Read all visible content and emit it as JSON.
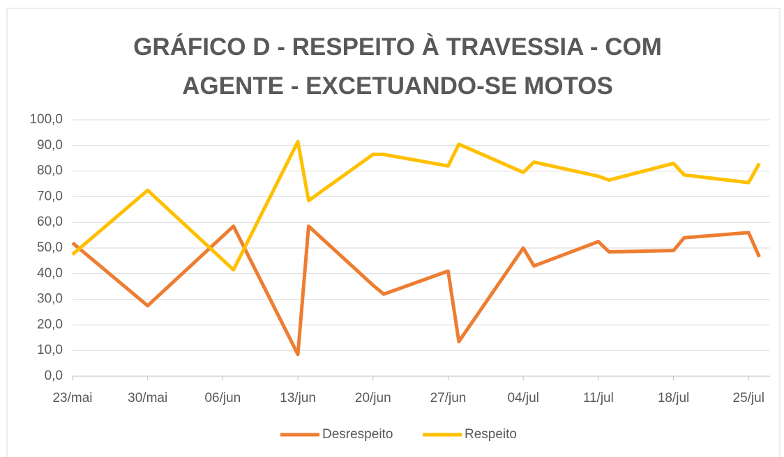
{
  "chart_data": {
    "type": "line",
    "title": "GRÁFICO D - RESPEITO À TRAVESSIA - COM AGENTE - EXCETUANDO-SE MOTOS",
    "x": [
      "05-23",
      "05-30",
      "06-07",
      "06-13",
      "06-14",
      "06-20",
      "06-21",
      "06-27",
      "06-28",
      "07-04",
      "07-05",
      "07-11",
      "07-12",
      "07-18",
      "07-19",
      "07-25",
      "07-26"
    ],
    "series": [
      {
        "name": "Desrespeito",
        "color": "#ed7d31",
        "values": [
          52,
          27.5,
          58.5,
          8.5,
          58.5,
          35.5,
          32,
          41,
          13.5,
          50,
          43,
          52.5,
          48.5,
          49,
          54,
          56,
          46.5
        ]
      },
      {
        "name": "Respeito",
        "color": "#ffc000",
        "values": [
          47.5,
          72.5,
          41.5,
          91.5,
          68.5,
          86.5,
          86.5,
          82,
          90.5,
          79.5,
          83.5,
          78,
          76.5,
          83,
          78.5,
          75.5,
          83
        ]
      }
    ],
    "xlim": [
      "05-23",
      "07-27"
    ],
    "xticks": [
      {
        "value": "05-23",
        "label": "23/mai"
      },
      {
        "value": "05-30",
        "label": "30/mai"
      },
      {
        "value": "06-06",
        "label": "06/jun"
      },
      {
        "value": "06-13",
        "label": "13/jun"
      },
      {
        "value": "06-20",
        "label": "20/jun"
      },
      {
        "value": "06-27",
        "label": "27/jun"
      },
      {
        "value": "07-04",
        "label": "04/jul"
      },
      {
        "value": "07-11",
        "label": "11/jul"
      },
      {
        "value": "07-18",
        "label": "18/jul"
      },
      {
        "value": "07-25",
        "label": "25/jul"
      }
    ],
    "ylim": [
      0,
      100
    ],
    "yticks": [
      {
        "value": 0,
        "label": "0,0"
      },
      {
        "value": 10,
        "label": "10,0"
      },
      {
        "value": 20,
        "label": "20,0"
      },
      {
        "value": 30,
        "label": "30,0"
      },
      {
        "value": 40,
        "label": "40,0"
      },
      {
        "value": 50,
        "label": "50,0"
      },
      {
        "value": 60,
        "label": "60,0"
      },
      {
        "value": 70,
        "label": "70,0"
      },
      {
        "value": 80,
        "label": "80,0"
      },
      {
        "value": 90,
        "label": "90,0"
      },
      {
        "value": 100,
        "label": "100,0"
      }
    ],
    "grid": true,
    "legend": "bottom"
  }
}
